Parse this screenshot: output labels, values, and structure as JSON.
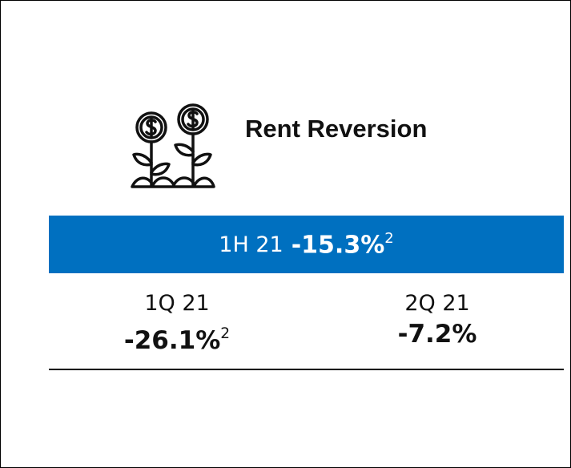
{
  "title": "Rent Reversion",
  "banner": {
    "label": "1H 21",
    "value": "-15.3%",
    "note": "2"
  },
  "columns": [
    {
      "label": "1Q 21",
      "value": "-26.1%",
      "note": "2"
    },
    {
      "label": "2Q 21",
      "value": "-7.2%"
    }
  ]
}
